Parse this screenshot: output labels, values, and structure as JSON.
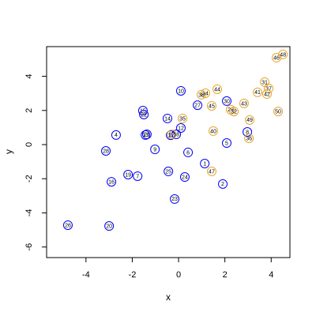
{
  "chart_data": {
    "type": "scatter",
    "x_label": "x",
    "y_label": "y",
    "xlim": [
      -5.7,
      4.81
    ],
    "ylim": [
      -6.62,
      5.74
    ],
    "xticks": [
      -4,
      -2,
      0,
      2,
      4
    ],
    "yticks": [
      -6,
      -4,
      -2,
      0,
      2,
      4
    ],
    "series": [
      {
        "color": "#0000ff",
        "labels": [
          "1",
          "2",
          "4",
          "5",
          "6",
          "7",
          "8",
          "9",
          "10",
          "11",
          "12",
          "13",
          "14",
          "15",
          "16",
          "18",
          "19",
          "20",
          "21",
          "22",
          "23",
          "24",
          "25",
          "26",
          "27",
          "28",
          "30"
        ],
        "x": [
          1.13,
          1.91,
          -2.7,
          2.08,
          0.41,
          -1.77,
          2.97,
          -1.02,
          0.1,
          -0.34,
          0.1,
          -1.43,
          -0.48,
          -1.54,
          -2.9,
          -0.1,
          -2.18,
          -3.0,
          -1.37,
          -1.5,
          -0.17,
          0.27,
          -0.44,
          -4.78,
          0.82,
          -3.14,
          2.08
        ],
        "y": [
          -1.11,
          -2.31,
          0.56,
          0.09,
          -0.46,
          -1.85,
          0.74,
          -0.28,
          3.15,
          0.55,
          0.97,
          0.56,
          1.53,
          1.99,
          -2.18,
          0.6,
          -1.76,
          -4.77,
          0.6,
          1.76,
          -3.19,
          -1.9,
          -1.57,
          -4.72,
          2.31,
          -0.37,
          2.55
        ]
      },
      {
        "color": "#e8a628",
        "labels": [
          "17",
          "29",
          "31",
          "32",
          "34",
          "35",
          "36",
          "37",
          "38",
          "40",
          "41",
          "42",
          "43",
          "44",
          "45",
          "46",
          "47",
          "48",
          "49",
          "50"
        ],
        "x": [
          -0.3,
          2.25,
          3.72,
          2.39,
          1.16,
          0.17,
          3.04,
          3.89,
          0.99,
          1.5,
          3.41,
          3.82,
          2.83,
          1.67,
          1.43,
          4.23,
          1.43,
          4.51,
          3.07,
          4.3
        ],
        "y": [
          0.6,
          2.05,
          3.66,
          1.94,
          3.01,
          1.53,
          0.37,
          3.29,
          2.92,
          0.79,
          3.06,
          2.96,
          2.41,
          3.24,
          2.27,
          5.09,
          -1.57,
          5.28,
          1.44,
          1.94
        ]
      }
    ]
  }
}
